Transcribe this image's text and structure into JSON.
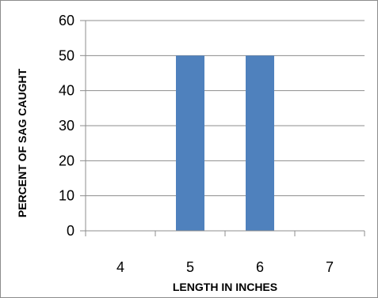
{
  "chart_data": {
    "type": "bar",
    "categories": [
      "4",
      "5",
      "6",
      "7"
    ],
    "values": [
      0,
      50,
      50,
      0
    ],
    "xlabel": "LENGTH IN INCHES",
    "ylabel": "PERCENT OF SAG CAUGHT",
    "ylim": [
      0,
      60
    ],
    "yticks": [
      "0",
      "10",
      "20",
      "30",
      "40",
      "50",
      "60"
    ],
    "grid": true,
    "legend": "none",
    "colors": {
      "bar": "#4f81bd",
      "grid": "#8c8c8c",
      "axis": "#8c8c8c"
    }
  }
}
